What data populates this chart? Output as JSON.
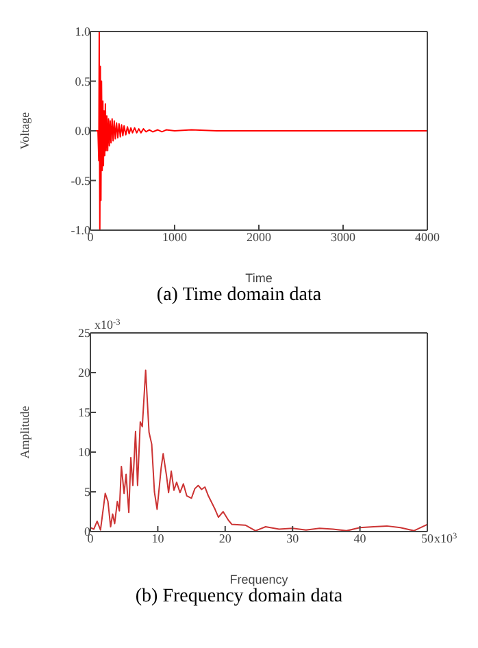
{
  "chart_data": [
    {
      "type": "line",
      "title": "(a) Time domain data",
      "xlabel": "Time",
      "ylabel": "Voltage",
      "xlim": [
        0,
        4000
      ],
      "ylim": [
        -1,
        1
      ],
      "xticks": [
        0,
        1000,
        2000,
        3000,
        4000
      ],
      "yticks": [
        {
          "value": -1,
          "label": "-1.0"
        },
        {
          "value": -0.5,
          "label": "-0.5"
        },
        {
          "value": 0,
          "label": "0.0"
        },
        {
          "value": 0.5,
          "label": "0.5"
        },
        {
          "value": 1,
          "label": "1.0"
        }
      ],
      "grid": false,
      "legend": false,
      "marker": "none",
      "line_style": "solid",
      "series": [
        {
          "color": "#ff0000",
          "x": [
            0,
            90,
            100,
            105,
            112,
            118,
            125,
            132,
            140,
            148,
            155,
            162,
            170,
            178,
            186,
            195,
            205,
            215,
            225,
            235,
            245,
            258,
            270,
            283,
            296,
            310,
            325,
            340,
            355,
            370,
            385,
            400,
            420,
            440,
            460,
            480,
            500,
            525,
            550,
            575,
            600,
            630,
            660,
            700,
            740,
            800,
            850,
            900,
            1000,
            1200,
            1500,
            2000,
            3000,
            4000
          ],
          "values": [
            0,
            0,
            -0.3,
            1,
            -1,
            0.65,
            -0.7,
            0.5,
            -0.4,
            0.3,
            -0.35,
            0.2,
            -0.25,
            0.27,
            -0.2,
            0.15,
            -0.2,
            0.12,
            -0.15,
            0.1,
            -0.12,
            0.12,
            -0.1,
            0.1,
            -0.08,
            0.08,
            -0.07,
            0.07,
            -0.06,
            0.06,
            -0.05,
            0.05,
            -0.04,
            0.04,
            -0.03,
            0.03,
            -0.02,
            0.03,
            -0.02,
            0.02,
            -0.02,
            0.02,
            -0.01,
            0.01,
            -0.01,
            0.01,
            -0.01,
            0.01,
            0,
            0.01,
            0,
            0,
            0,
            0
          ]
        }
      ]
    },
    {
      "type": "line",
      "title": "(b) Frequency domain data",
      "xlabel": "Frequency",
      "ylabel": "Amplitude",
      "annotations": [
        "x10$^{3}$",
        "x10$^{-3}$"
      ],
      "xlim": [
        0,
        50
      ],
      "ylim": [
        0,
        25
      ],
      "xticks": [
        0,
        10,
        20,
        30,
        40,
        50
      ],
      "yticks": [
        0,
        5,
        10,
        15,
        20,
        25
      ],
      "grid": false,
      "legend": false,
      "marker": "none",
      "line_style": "solid",
      "series": [
        {
          "color": "#cc3333",
          "x": [
            0,
            0.5,
            1,
            1.5,
            2.2,
            2.6,
            3,
            3.3,
            3.6,
            4,
            4.3,
            4.6,
            5,
            5.3,
            5.7,
            6,
            6.3,
            6.7,
            7,
            7.4,
            7.7,
            8.2,
            8.7,
            9.1,
            9.5,
            9.9,
            10.5,
            10.8,
            11.3,
            11.6,
            12,
            12.4,
            12.8,
            13.3,
            13.8,
            14.3,
            15,
            15.5,
            16,
            16.5,
            17,
            17.5,
            18.5,
            19,
            19.7,
            20.5,
            21,
            23,
            24.5,
            26,
            28,
            30,
            32,
            34,
            36,
            38,
            40,
            42,
            44,
            46,
            48,
            50
          ],
          "values": [
            0.5,
            0.3,
            1.3,
            0.2,
            4.8,
            3.8,
            0.6,
            2.2,
            1,
            3.8,
            2.6,
            8.2,
            4.8,
            7.2,
            2.4,
            9.3,
            5.8,
            12.6,
            5.8,
            13.8,
            13.2,
            20.3,
            12.5,
            11,
            5,
            2.8,
            8,
            9.8,
            7,
            4.9,
            7.6,
            5.2,
            6.2,
            4.9,
            6,
            4.5,
            4.2,
            5.4,
            5.8,
            5.3,
            5.6,
            4.5,
            2.8,
            1.8,
            2.5,
            1.4,
            0.9,
            0.8,
            0.1,
            0.6,
            0.3,
            0.4,
            0.2,
            0.4,
            0.3,
            0.1,
            0.5,
            0.6,
            0.7,
            0.5,
            0.1,
            0.9
          ]
        }
      ]
    }
  ]
}
